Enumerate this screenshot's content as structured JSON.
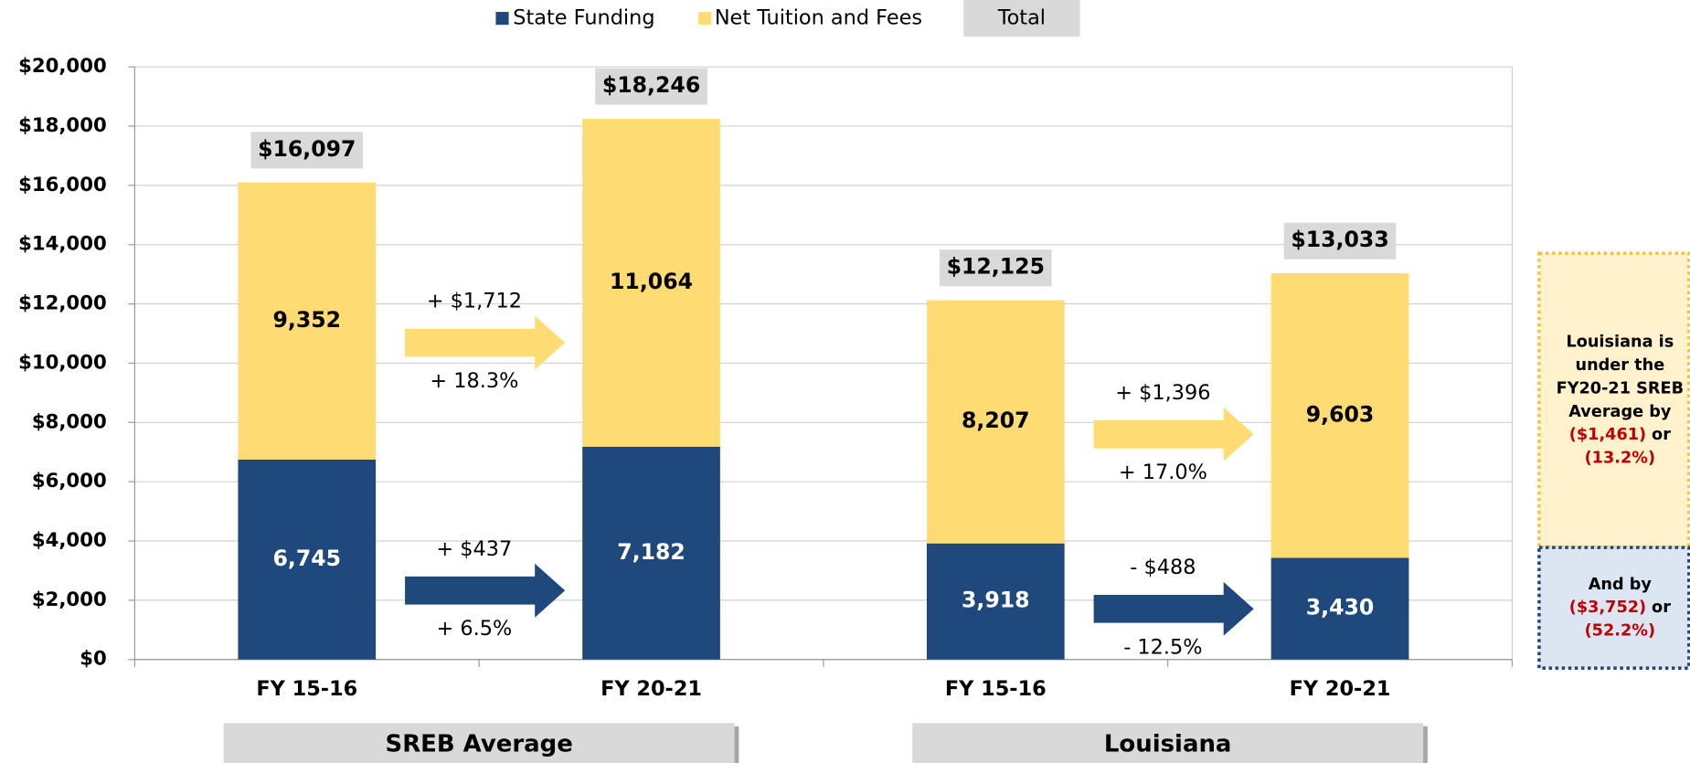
{
  "chart_data": {
    "type": "stacked_bar",
    "categories": [
      "FY 15-16",
      "FY 20-21",
      "FY 15-16",
      "FY 20-21"
    ],
    "groups": [
      "SREB Average",
      "Louisiana"
    ],
    "series": [
      {
        "name": "State Funding",
        "color": "#1f497d",
        "values": [
          6745,
          7182,
          3918,
          3430
        ],
        "value_labels": [
          "6,745",
          "7,182",
          "3,918",
          "3,430"
        ]
      },
      {
        "name": "Net Tuition and Fees",
        "color": "#ffdc73",
        "values": [
          9352,
          11064,
          8207,
          9603
        ],
        "value_labels": [
          "9,352",
          "11,064",
          "8,207",
          "9,603"
        ]
      }
    ],
    "total": {
      "name": "Total",
      "values": [
        16097,
        18246,
        12125,
        13033
      ],
      "value_labels": [
        "$16,097",
        "$18,246",
        "$12,125",
        "$13,033"
      ]
    },
    "changes": [
      [
        "+ $1,712",
        "+ 18.3%"
      ],
      [
        "+ $437",
        "+ 6.5%"
      ],
      [
        "+ $1,396",
        "+ 17.0%"
      ],
      [
        "- $488",
        "- 12.5%"
      ]
    ],
    "notes": [
      {
        "lines": [
          "Louisiana is",
          "under the",
          "FY20-21 SREB",
          "Average by"
        ],
        "amount": "($1,461)",
        "joiner": "or",
        "percent": "(13.2%)"
      },
      {
        "lines": [
          "And by"
        ],
        "amount": "($3,752)",
        "joiner": "or",
        "percent": "(52.2%)"
      }
    ],
    "ylim": [
      0,
      20000
    ],
    "yticks": [
      {
        "value": 0,
        "label": "$0"
      },
      {
        "value": 2000,
        "label": "$2,000"
      },
      {
        "value": 4000,
        "label": "$4,000"
      },
      {
        "value": 6000,
        "label": "$6,000"
      },
      {
        "value": 8000,
        "label": "$8,000"
      },
      {
        "value": 10000,
        "label": "$10,000"
      },
      {
        "value": 12000,
        "label": "$12,000"
      },
      {
        "value": 14000,
        "label": "$14,000"
      },
      {
        "value": 16000,
        "label": "$16,000"
      },
      {
        "value": 18000,
        "label": "$18,000"
      },
      {
        "value": 20000,
        "label": "$20,000"
      }
    ],
    "grid": true,
    "legend": "top"
  }
}
